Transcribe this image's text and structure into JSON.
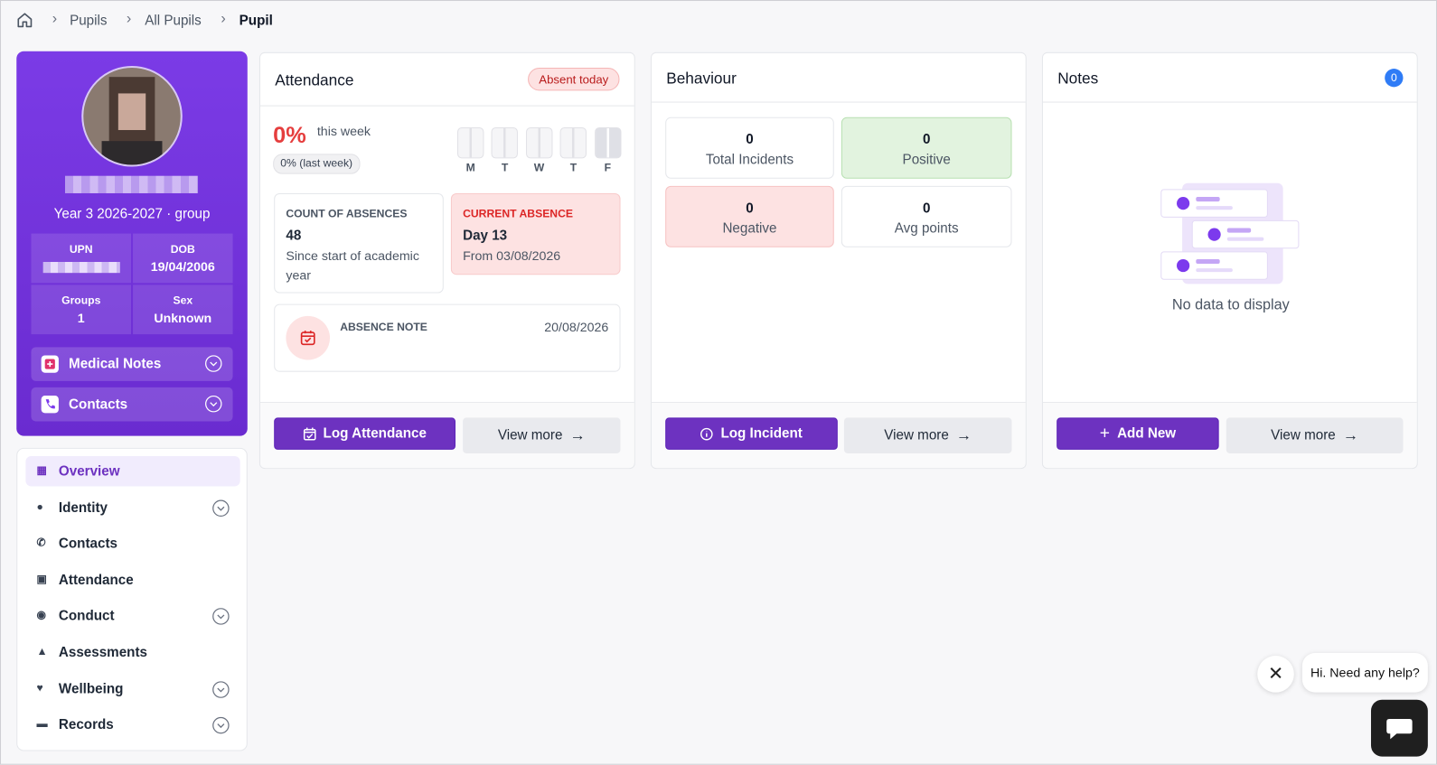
{
  "breadcrumb": [
    "Pupils",
    "All Pupils",
    "Pupil"
  ],
  "profile": {
    "group_line": "Year 3 2026-2027 · group",
    "fields": [
      {
        "label": "UPN",
        "value": null
      },
      {
        "label": "DOB",
        "value": "19/04/2006"
      },
      {
        "label": "Groups",
        "value": "1"
      },
      {
        "label": "Sex",
        "value": "Unknown"
      }
    ],
    "sections": [
      "Medical Notes",
      "Contacts"
    ]
  },
  "nav": [
    {
      "label": "Overview",
      "expandable": false,
      "active": true
    },
    {
      "label": "Identity",
      "expandable": true,
      "active": false
    },
    {
      "label": "Contacts",
      "expandable": false,
      "active": false
    },
    {
      "label": "Attendance",
      "expandable": false,
      "active": false
    },
    {
      "label": "Conduct",
      "expandable": true,
      "active": false
    },
    {
      "label": "Assessments",
      "expandable": false,
      "active": false
    },
    {
      "label": "Wellbeing",
      "expandable": true,
      "active": false
    },
    {
      "label": "Records",
      "expandable": true,
      "active": false
    }
  ],
  "attendance": {
    "title": "Attendance",
    "badge": "Absent today",
    "percent": "0%",
    "period": "this week",
    "last_week": "0% (last week)",
    "days": [
      "M",
      "T",
      "W",
      "T",
      "F"
    ],
    "count": {
      "title": "COUNT OF ABSENCES",
      "value": "48",
      "note": "Since start of academic year"
    },
    "current": {
      "title": "CURRENT ABSENCE",
      "value": "Day 13",
      "note": "From 03/08/2026"
    },
    "absence_note": {
      "title": "ABSENCE NOTE",
      "date": "20/08/2026"
    },
    "buttons": [
      "Log Attendance",
      "View more"
    ]
  },
  "behaviour": {
    "title": "Behaviour",
    "stats": [
      {
        "value": "0",
        "label": "Total Incidents",
        "tone": "plain"
      },
      {
        "value": "0",
        "label": "Positive",
        "tone": "positive"
      },
      {
        "value": "0",
        "label": "Negative",
        "tone": "negative"
      },
      {
        "value": "0",
        "label": "Avg points",
        "tone": "plain"
      }
    ],
    "buttons": [
      "Log Incident",
      "View more"
    ]
  },
  "notes": {
    "title": "Notes",
    "count": "0",
    "empty": "No data to display",
    "buttons": [
      "Add New",
      "View more"
    ]
  },
  "chat": {
    "message": "Hi. Need any help?"
  }
}
